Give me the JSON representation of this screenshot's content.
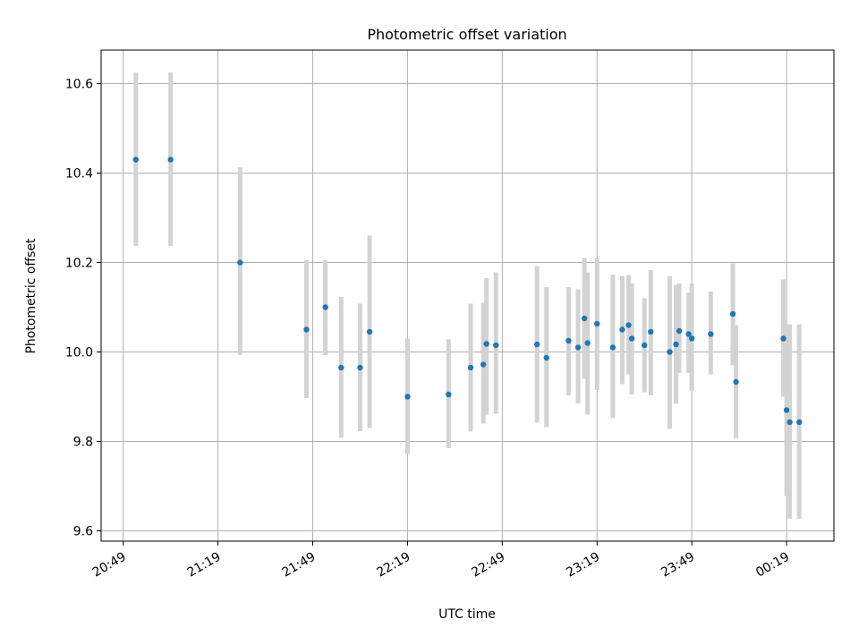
{
  "chart_data": {
    "type": "scatter",
    "title": "Photometric offset variation",
    "xlabel": "UTC time",
    "ylabel": "Photometric offset",
    "x_ticks": [
      "20:49",
      "21:19",
      "21:49",
      "22:19",
      "22:49",
      "23:19",
      "23:49",
      "00:19"
    ],
    "x_tick_minutes": [
      1249,
      1279,
      1309,
      1339,
      1369,
      1399,
      1429,
      1459
    ],
    "xlim_minutes": [
      1242,
      1474
    ],
    "ylim": [
      9.577,
      10.675
    ],
    "y_ticks": [
      9.6,
      9.8,
      10.0,
      10.2,
      10.4,
      10.6
    ],
    "grid": true,
    "colors": {
      "points": "#1f77b4",
      "errorbars": "#d3d3d3",
      "grid": "#b0b0b0"
    },
    "series": [
      {
        "x_minutes": [
          1253,
          1264,
          1286,
          1307,
          1313,
          1318,
          1324,
          1327,
          1339,
          1352,
          1359,
          1363,
          1364,
          1367,
          1380,
          1383,
          1390,
          1393,
          1395,
          1396,
          1399,
          1404,
          1407,
          1409,
          1410,
          1414,
          1416,
          1422,
          1424,
          1425,
          1428,
          1429,
          1435,
          1442,
          1443,
          1458,
          1459,
          1460,
          1463
        ],
        "y": [
          10.43,
          10.43,
          10.2,
          10.05,
          10.1,
          9.965,
          9.965,
          10.045,
          9.9,
          9.905,
          9.965,
          9.972,
          10.018,
          10.015,
          10.017,
          9.987,
          10.025,
          10.01,
          10.075,
          10.02,
          10.063,
          10.01,
          10.05,
          10.06,
          10.03,
          10.015,
          10.045,
          10.0,
          10.017,
          10.047,
          10.04,
          10.03,
          10.04,
          10.085,
          9.933,
          10.03,
          9.87,
          9.843,
          9.843
        ],
        "err_low": [
          10.237,
          10.237,
          9.993,
          9.897,
          9.993,
          9.808,
          9.823,
          9.83,
          9.772,
          9.785,
          9.822,
          9.84,
          9.86,
          9.862,
          9.842,
          9.832,
          9.903,
          9.885,
          9.94,
          9.86,
          9.915,
          9.852,
          9.928,
          9.95,
          9.905,
          9.91,
          9.903,
          9.828,
          9.884,
          9.953,
          9.953,
          9.913,
          9.95,
          9.97,
          9.807,
          9.9,
          9.678,
          9.627,
          9.627
        ],
        "err_high": [
          10.625,
          10.625,
          10.413,
          10.205,
          10.205,
          10.123,
          10.108,
          10.26,
          10.03,
          10.028,
          10.108,
          10.11,
          10.165,
          10.178,
          10.192,
          10.145,
          10.145,
          10.14,
          10.21,
          10.178,
          10.21,
          10.173,
          10.17,
          10.172,
          10.153,
          10.12,
          10.183,
          10.17,
          10.15,
          10.153,
          10.133,
          10.153,
          10.135,
          10.198,
          10.06,
          10.162,
          10.062,
          10.062,
          10.062
        ]
      }
    ]
  }
}
